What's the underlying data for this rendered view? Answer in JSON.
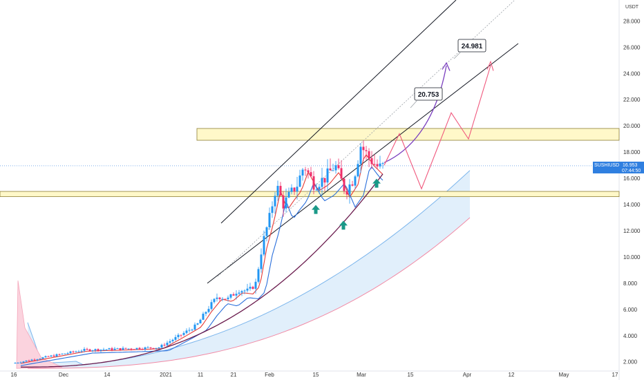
{
  "chart_data": {
    "type": "candlestick",
    "title": "",
    "xlabel": "",
    "ylabel": "",
    "currency": "USDT",
    "y_ticks": [
      "28.000",
      "26.000",
      "24.000",
      "22.000",
      "20.000",
      "18.000",
      "16.000",
      "14.000",
      "12.000",
      "10.000",
      "8.000",
      "6.000",
      "4.000",
      "2.000"
    ],
    "y_tick_values": [
      28,
      26,
      24,
      22,
      20,
      18,
      16,
      14,
      12,
      10,
      8,
      6,
      4,
      2
    ],
    "ylim": [
      1.3,
      29.6
    ],
    "x_ticks": [
      "16",
      "Dec",
      "14",
      "2021",
      "11",
      "21",
      "Feb",
      "15",
      "Mar",
      "15",
      "Apr",
      "12",
      "May",
      "17"
    ],
    "symbol_tag": {
      "symbol": "SUSHIUSDT",
      "price": "16.953",
      "countdown": "07:44:50",
      "value": 16.953
    },
    "callouts": [
      {
        "label": "24.981",
        "value": 24.981
      },
      {
        "label": "20.753",
        "value": 20.753
      }
    ],
    "zones": [
      {
        "name": "resistance",
        "low": 18.9,
        "high": 19.8
      },
      {
        "name": "support",
        "low": 14.6,
        "high": 15.0
      }
    ],
    "last_close": 16.953,
    "colors": {
      "up": "#2196f3",
      "down": "#ef2f6b",
      "conversion_line": "#e53935",
      "base_line": "#2a6fdb",
      "ma_line": "#6a1b4d",
      "cloud": "#c8e1f8",
      "zone_fill": "#fff8c9",
      "zone_stroke": "#8d7e35",
      "projection_pink": "#f0587d",
      "projection_purple": "#7b3fbf",
      "arrow": "#1a9988",
      "tag_bg": "#2f7fe0"
    }
  }
}
